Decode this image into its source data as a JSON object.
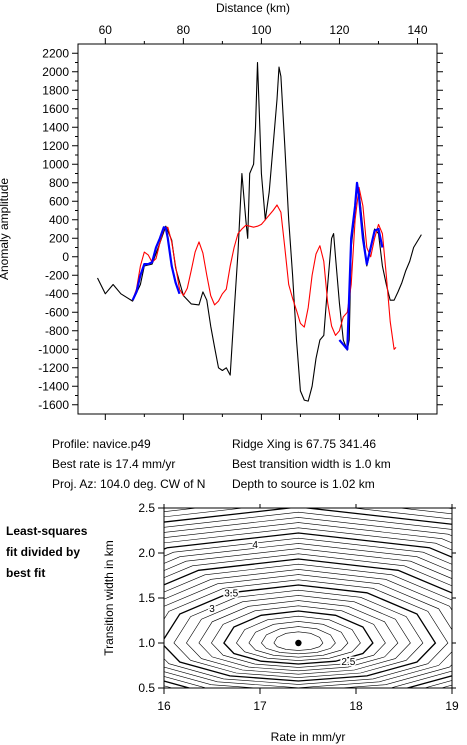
{
  "info": {
    "profile": "Profile: navice.p49",
    "best_rate": "Best rate is 17.4 mm/yr",
    "proj_az": "Proj. Az: 104.0 deg. CW of N",
    "ridge_xing": "Ridge Xing is 67.75 341.46",
    "transition_width": "Best transition width is 1.0 km",
    "depth": "Depth to source is   1.02 km"
  },
  "note_lines": [
    "Least-squares",
    "fit divided by",
    "best fit"
  ],
  "chart_data": [
    {
      "type": "line",
      "xlabel": "Distance (km)",
      "ylabel": "Anomaly amplitude",
      "xlim": [
        53,
        145
      ],
      "ylim": [
        -1700,
        2300
      ],
      "xticks": [
        60,
        80,
        100,
        120,
        140
      ],
      "yticks": [
        -1600,
        -1400,
        -1200,
        -1000,
        -800,
        -600,
        -400,
        -200,
        0,
        200,
        400,
        600,
        800,
        1000,
        1200,
        1400,
        1600,
        1800,
        2000,
        2200
      ],
      "x_axis_position": "top",
      "series": [
        {
          "color": "#000000",
          "points": [
            [
              58,
              -230
            ],
            [
              60,
              -400
            ],
            [
              62,
              -300
            ],
            [
              64,
              -400
            ],
            [
              67,
              -480
            ],
            [
              69,
              -300
            ],
            [
              70,
              -100
            ],
            [
              72,
              -80
            ],
            [
              74,
              150
            ],
            [
              75.5,
              330
            ],
            [
              77,
              180
            ],
            [
              78,
              -120
            ],
            [
              80,
              -420
            ],
            [
              82,
              -510
            ],
            [
              84,
              -520
            ],
            [
              85,
              -380
            ],
            [
              86,
              -470
            ],
            [
              87,
              -750
            ],
            [
              88,
              -980
            ],
            [
              89,
              -1200
            ],
            [
              90,
              -1230
            ],
            [
              91,
              -1200
            ],
            [
              92,
              -1280
            ],
            [
              93,
              -600
            ],
            [
              94,
              50
            ],
            [
              95,
              900
            ],
            [
              96,
              400
            ],
            [
              96.5,
              200
            ],
            [
              97,
              900
            ],
            [
              98,
              1000
            ],
            [
              98.5,
              1400
            ],
            [
              99,
              2100
            ],
            [
              99.5,
              1500
            ],
            [
              100,
              900
            ],
            [
              101,
              400
            ],
            [
              102,
              700
            ],
            [
              103,
              1200
            ],
            [
              104,
              1700
            ],
            [
              104.5,
              2050
            ],
            [
              105,
              1950
            ],
            [
              106,
              1200
            ],
            [
              107,
              400
            ],
            [
              108,
              -200
            ],
            [
              109,
              -900
            ],
            [
              110,
              -1450
            ],
            [
              111,
              -1550
            ],
            [
              112,
              -1560
            ],
            [
              113,
              -1400
            ],
            [
              114,
              -1100
            ],
            [
              115,
              -900
            ],
            [
              116,
              -850
            ],
            [
              117,
              -300
            ],
            [
              118,
              200
            ],
            [
              118.5,
              250
            ],
            [
              119,
              0
            ],
            [
              120,
              -500
            ],
            [
              121,
              -900
            ],
            [
              122,
              -1010
            ],
            [
              122.5,
              -900
            ],
            [
              123,
              100
            ],
            [
              124,
              500
            ],
            [
              124.5,
              750
            ],
            [
              125,
              720
            ],
            [
              126,
              300
            ],
            [
              127,
              -100
            ],
            [
              128,
              80
            ],
            [
              129,
              300
            ],
            [
              130,
              250
            ],
            [
              131,
              -100
            ],
            [
              132,
              -300
            ],
            [
              133,
              -470
            ],
            [
              134,
              -470
            ],
            [
              135,
              -380
            ],
            [
              136,
              -280
            ],
            [
              137,
              -150
            ],
            [
              138,
              -50
            ],
            [
              139,
              100
            ],
            [
              141,
              240
            ]
          ]
        },
        {
          "color": "#ff0000",
          "points": [
            [
              67,
              -470
            ],
            [
              68,
              -350
            ],
            [
              69,
              -100
            ],
            [
              70,
              50
            ],
            [
              71,
              20
            ],
            [
              72,
              -60
            ],
            [
              73,
              -20
            ],
            [
              74,
              150
            ],
            [
              75,
              300
            ],
            [
              76,
              320
            ],
            [
              77,
              160
            ],
            [
              78,
              -100
            ],
            [
              79,
              -350
            ],
            [
              80,
              -420
            ],
            [
              81,
              -340
            ],
            [
              82,
              -150
            ],
            [
              83,
              50
            ],
            [
              84,
              160
            ],
            [
              85,
              40
            ],
            [
              86,
              -200
            ],
            [
              87,
              -420
            ],
            [
              88,
              -520
            ],
            [
              89,
              -480
            ],
            [
              90,
              -400
            ],
            [
              91,
              -350
            ],
            [
              92,
              -100
            ],
            [
              93,
              100
            ],
            [
              94,
              250
            ],
            [
              95,
              300
            ],
            [
              96,
              340
            ],
            [
              97,
              330
            ],
            [
              98,
              320
            ],
            [
              99,
              330
            ],
            [
              100,
              350
            ],
            [
              101,
              400
            ],
            [
              102,
              450
            ],
            [
              103,
              500
            ],
            [
              104,
              560
            ],
            [
              105,
              480
            ],
            [
              106,
              100
            ],
            [
              107,
              -300
            ],
            [
              108,
              -450
            ],
            [
              109,
              -580
            ],
            [
              110,
              -720
            ],
            [
              111,
              -760
            ],
            [
              112,
              -550
            ],
            [
              113,
              -200
            ],
            [
              114,
              30
            ],
            [
              115,
              120
            ],
            [
              116,
              -50
            ],
            [
              117,
              -500
            ],
            [
              118,
              -750
            ],
            [
              119,
              -850
            ],
            [
              120,
              -800
            ],
            [
              121,
              -650
            ],
            [
              122,
              -600
            ],
            [
              123,
              -300
            ],
            [
              124,
              400
            ],
            [
              125,
              750
            ],
            [
              126,
              550
            ],
            [
              127,
              100
            ],
            [
              128,
              0
            ],
            [
              129,
              200
            ],
            [
              130,
              350
            ],
            [
              131,
              250
            ],
            [
              132,
              -200
            ],
            [
              133,
              -700
            ],
            [
              134,
              -1000
            ],
            [
              134.5,
              -980
            ]
          ]
        },
        {
          "color": "#0000ff",
          "points": [
            [
              67,
              -470
            ],
            [
              68,
              -380
            ],
            [
              69,
              -200
            ],
            [
              70,
              -80
            ],
            [
              71,
              -80
            ],
            [
              72,
              -60
            ],
            [
              73,
              100
            ],
            [
              74,
              200
            ],
            [
              75,
              320
            ],
            [
              75.5,
              310
            ],
            [
              76,
              200
            ],
            [
              77,
              -100
            ],
            [
              78,
              -280
            ],
            [
              79,
              -400
            ]
          ]
        },
        {
          "color": "#0000ff",
          "points": [
            [
              120,
              -900
            ],
            [
              121,
              -950
            ],
            [
              122,
              -1000
            ],
            [
              123,
              200
            ],
            [
              124,
              550
            ],
            [
              124.5,
              800
            ],
            [
              125,
              650
            ],
            [
              126,
              200
            ],
            [
              127,
              -80
            ],
            [
              128,
              100
            ],
            [
              129,
              280
            ],
            [
              130,
              300
            ],
            [
              131,
              100
            ]
          ]
        }
      ]
    },
    {
      "type": "contour",
      "xlabel": "Rate in mm/yr",
      "ylabel": "Transition width in km",
      "xlim": [
        16,
        19
      ],
      "ylim": [
        0.5,
        2.5
      ],
      "xticks": [
        "16",
        "17",
        "18",
        "19"
      ],
      "yticks": [
        "0.5",
        "1.0",
        "1.5",
        "2.0",
        "2.5"
      ],
      "contour_labels": [
        {
          "text": "4",
          "x": 16.95,
          "y": 2.09
        },
        {
          "text": "3.5",
          "x": 16.7,
          "y": 1.55
        },
        {
          "text": "3",
          "x": 16.5,
          "y": 1.38
        },
        {
          "text": "2.5",
          "x": 17.92,
          "y": 0.79
        }
      ],
      "best_fit": {
        "x": 17.4,
        "y": 1.0
      }
    }
  ]
}
